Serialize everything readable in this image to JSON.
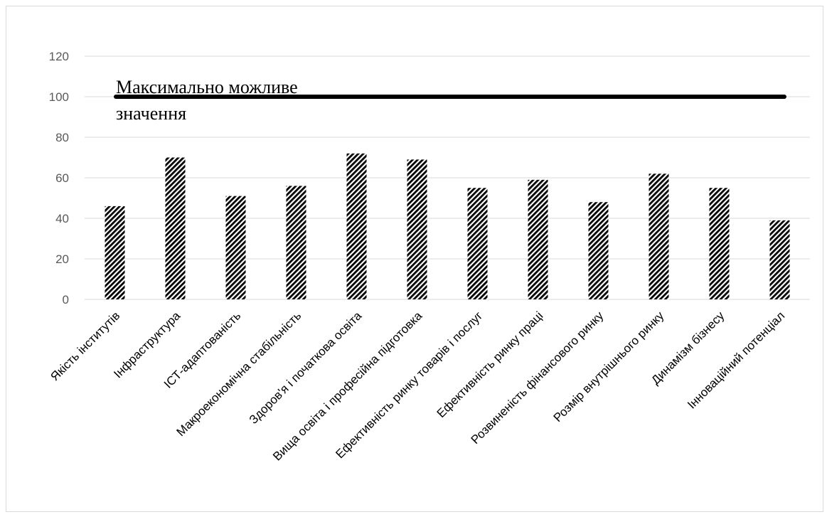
{
  "chart_data": {
    "type": "bar",
    "categories": [
      "Якість інститутів",
      "Інфраструктура",
      "ІСТ-адаптованість",
      "Макроекономічна стабільність",
      "Здоров'я і початкова освіта",
      "Вища освіта і професійна підготовка",
      "Ефективність ринку товарів і послуг",
      "Ефективність ринку праці",
      "Розвиненість фінансового ринку",
      "Розмір внутрішнього ринку",
      "Динамізм бізнесу",
      "Інноваційний потенціал"
    ],
    "values": [
      46,
      70,
      51,
      56,
      72,
      69,
      55,
      59,
      48,
      62,
      55,
      39
    ],
    "ylim": [
      0,
      120
    ],
    "yticks": [
      0,
      20,
      40,
      60,
      80,
      100,
      120
    ],
    "grid": true,
    "reference_line": {
      "value": 100,
      "label_line1": "Максимально можливе",
      "label_line2": "значення"
    },
    "colors": {
      "gridline": "#d9d9d9",
      "reference_line": "#000000",
      "bar_pattern_dark": "#000000",
      "bar_pattern_light": "#ffffff"
    }
  }
}
